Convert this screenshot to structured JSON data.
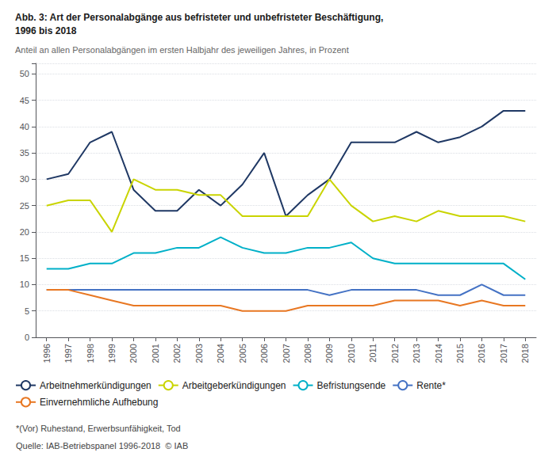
{
  "chart_data": {
    "type": "line",
    "title": "Abb. 3: Art der Personalabgänge aus befristeter und unbefristeter Beschäftigung,\n1996 bis 2018",
    "subtitle": "Anteil an allen Personalabgängen im ersten Halbjahr des jeweiligen Jahres, in Prozent",
    "x": [
      1996,
      1997,
      1998,
      1999,
      2000,
      2001,
      2002,
      2003,
      2004,
      2005,
      2006,
      2007,
      2008,
      2009,
      2010,
      2011,
      2012,
      2013,
      2014,
      2015,
      2016,
      2017,
      2018
    ],
    "series": [
      {
        "name": "Arbeitnehmerkündigungen",
        "color": "#1f3864",
        "values": [
          30,
          31,
          37,
          39,
          28,
          24,
          24,
          28,
          25,
          29,
          35,
          23,
          27,
          30,
          37,
          37,
          37,
          39,
          37,
          38,
          40,
          43,
          43
        ]
      },
      {
        "name": "Arbeitgeberkündigungen",
        "color": "#c9d400",
        "values": [
          25,
          26,
          26,
          20,
          30,
          28,
          28,
          27,
          27,
          23,
          23,
          23,
          23,
          30,
          25,
          22,
          23,
          22,
          24,
          23,
          23,
          23,
          22
        ]
      },
      {
        "name": "Befristungsende",
        "color": "#00b0c8",
        "values": [
          13,
          13,
          14,
          14,
          16,
          16,
          17,
          17,
          19,
          17,
          16,
          16,
          17,
          17,
          18,
          15,
          14,
          14,
          14,
          14,
          14,
          14,
          11
        ]
      },
      {
        "name": "Rente*",
        "color": "#4472c4",
        "values": [
          9,
          9,
          9,
          9,
          9,
          9,
          9,
          9,
          9,
          9,
          9,
          9,
          9,
          8,
          9,
          9,
          9,
          9,
          8,
          8,
          10,
          8,
          8
        ]
      },
      {
        "name": "Einvernehmliche Aufhebung",
        "color": "#e87722",
        "values": [
          9,
          9,
          8,
          7,
          6,
          6,
          6,
          6,
          6,
          5,
          5,
          5,
          6,
          6,
          6,
          6,
          7,
          7,
          7,
          6,
          7,
          6,
          6
        ]
      }
    ],
    "xlim": [
      1995.5,
      2018.5
    ],
    "xticks": [
      1996,
      1997,
      1998,
      1999,
      2000,
      2001,
      2002,
      2003,
      2004,
      2005,
      2006,
      2007,
      2008,
      2009,
      2010,
      2011,
      2012,
      2013,
      2014,
      2015,
      2016,
      2017,
      2018
    ],
    "ylim": [
      0,
      52
    ],
    "yticks": [
      0,
      5,
      10,
      15,
      20,
      25,
      30,
      35,
      40,
      45,
      50
    ],
    "grid": true,
    "legend": "bottom",
    "annotations": [
      "*(Vor) Ruhestand, Erwerbsunfähigkeit, Tod",
      "Quelle: IAB-Betriebspanel 1996-2018  © IAB"
    ]
  }
}
